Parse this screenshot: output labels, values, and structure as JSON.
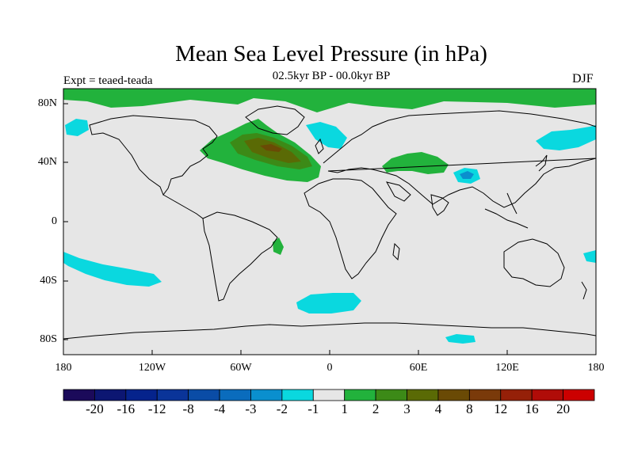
{
  "title": "Mean Sea Level Pressure (in hPa)",
  "subtitle": "02.5kyr BP - 00.0kyr BP",
  "experiment": "Expt = teaed-teada",
  "season": "DJF",
  "map": {
    "lon_range": [
      -180,
      180
    ],
    "lat_range": [
      -90,
      90
    ],
    "lat_ticks": [
      "80N",
      "40N",
      "0",
      "40S",
      "80S"
    ],
    "lon_ticks": [
      "180",
      "120W",
      "60W",
      "0",
      "60E",
      "120E",
      "180"
    ],
    "background_color": "#e6e6e6"
  },
  "colorbar": {
    "colors": [
      "#1b0a5a",
      "#0c1672",
      "#05238c",
      "#0a3499",
      "#0a4ca6",
      "#0a6cbd",
      "#0a8fce",
      "#0ad8df",
      "#e6e6e6",
      "#22b23c",
      "#3c8a17",
      "#5a6a05",
      "#6a4a05",
      "#7a3a0a",
      "#952008",
      "#b00c08",
      "#cc0000"
    ],
    "labels": [
      "-20",
      "-16",
      "-12",
      "-8",
      "-4",
      "-3",
      "-2",
      "-1",
      "1",
      "2",
      "3",
      "4",
      "8",
      "12",
      "16",
      "20"
    ]
  }
}
